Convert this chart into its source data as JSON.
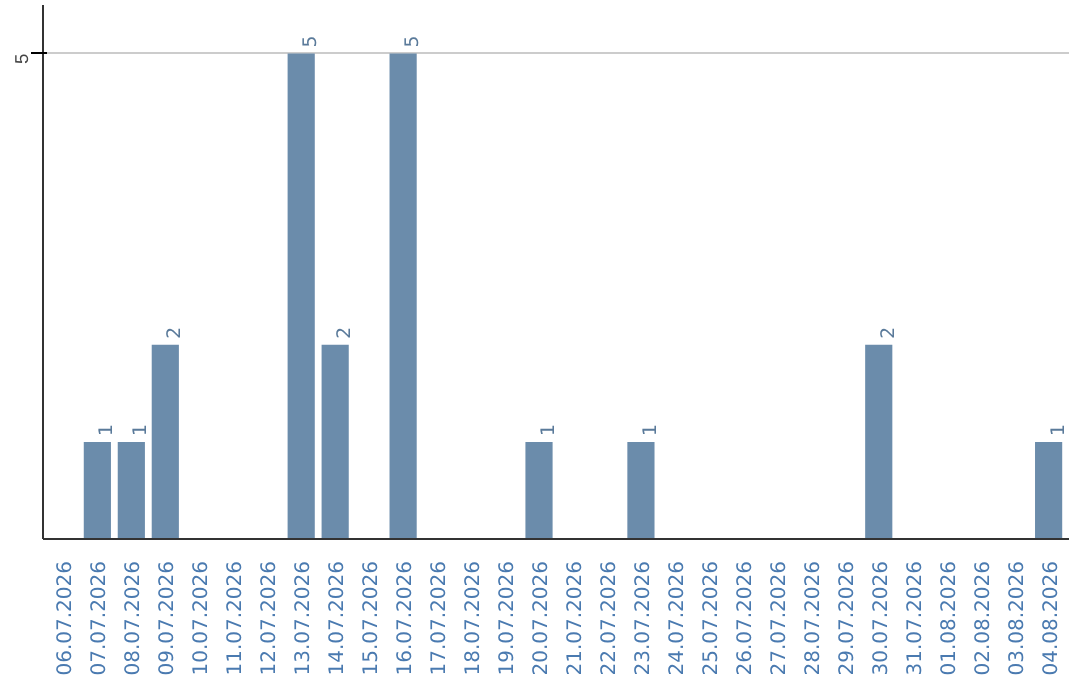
{
  "chart_data": {
    "type": "bar",
    "categories": [
      "06.07.2026",
      "07.07.2026",
      "08.07.2026",
      "09.07.2026",
      "10.07.2026",
      "11.07.2026",
      "12.07.2026",
      "13.07.2026",
      "14.07.2026",
      "15.07.2026",
      "16.07.2026",
      "17.07.2026",
      "18.07.2026",
      "19.07.2026",
      "20.07.2026",
      "21.07.2026",
      "22.07.2026",
      "23.07.2026",
      "24.07.2026",
      "25.07.2026",
      "26.07.2026",
      "27.07.2026",
      "28.07.2026",
      "29.07.2026",
      "30.07.2026",
      "31.07.2026",
      "01.08.2026",
      "02.08.2026",
      "03.08.2026",
      "04.08.2026"
    ],
    "values": [
      0,
      1,
      1,
      2,
      0,
      0,
      0,
      5,
      2,
      0,
      5,
      0,
      0,
      0,
      1,
      0,
      0,
      1,
      0,
      0,
      0,
      0,
      0,
      0,
      2,
      0,
      0,
      0,
      0,
      1
    ],
    "value_labels": [
      null,
      "1",
      "1",
      "2",
      null,
      null,
      null,
      "5",
      "2",
      null,
      "5",
      null,
      null,
      null,
      "1",
      null,
      null,
      "1",
      null,
      null,
      null,
      null,
      null,
      null,
      "2",
      null,
      null,
      null,
      null,
      "1"
    ],
    "color": "#6b8cab",
    "ylim": [
      0,
      5.5
    ],
    "yticks": [
      5
    ],
    "grid": "y"
  }
}
